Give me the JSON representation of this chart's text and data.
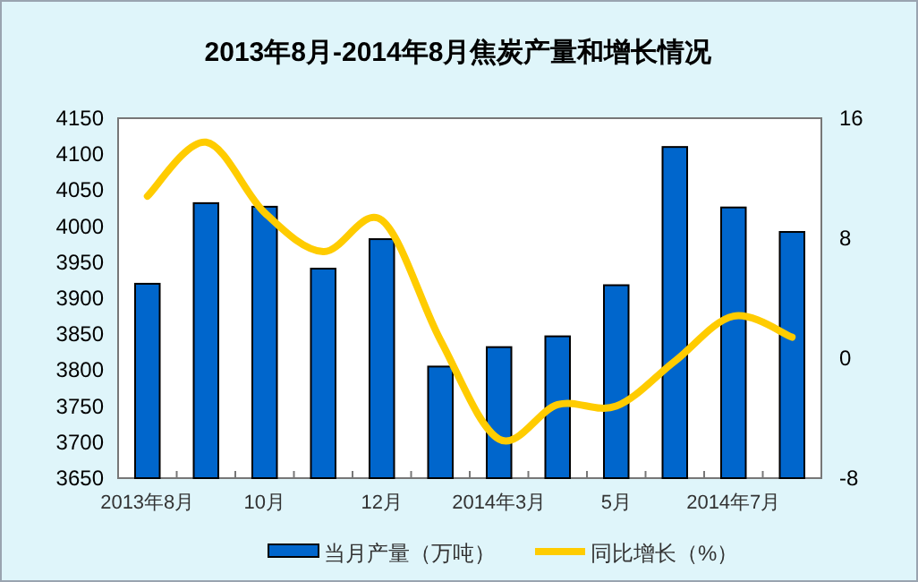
{
  "chart_data": {
    "type": "bar",
    "title": "2013年8月-2014年8月焦炭产量和增长情况",
    "categories": [
      "2013年8月",
      null,
      "10月",
      null,
      "12月",
      null,
      "2014年3月",
      null,
      "5月",
      null,
      "2014年7月",
      null
    ],
    "series": [
      {
        "name": "当月产量（万吨）",
        "color": "#0066cc",
        "values": [
          3920,
          4032,
          4027,
          3941,
          3982,
          3805,
          3832,
          3847,
          3918,
          4110,
          4026,
          3992
        ]
      },
      {
        "name": "同比增长（%）",
        "type": "line",
        "axis": "y2",
        "color": "#ffcc00",
        "values": [
          10.8,
          14.4,
          9.7,
          7.1,
          9.2,
          1.2,
          -5.4,
          -3.1,
          -3.2,
          -0.2,
          2.8,
          1.4
        ]
      }
    ],
    "ylim": [
      3650,
      4150
    ],
    "yticks": [
      3650,
      3700,
      3750,
      3800,
      3850,
      3900,
      3950,
      4000,
      4050,
      4100,
      4150
    ],
    "y2lim": [
      -8,
      16
    ],
    "y2ticks": [
      -8,
      0,
      8,
      16
    ],
    "legend": "bottom"
  }
}
